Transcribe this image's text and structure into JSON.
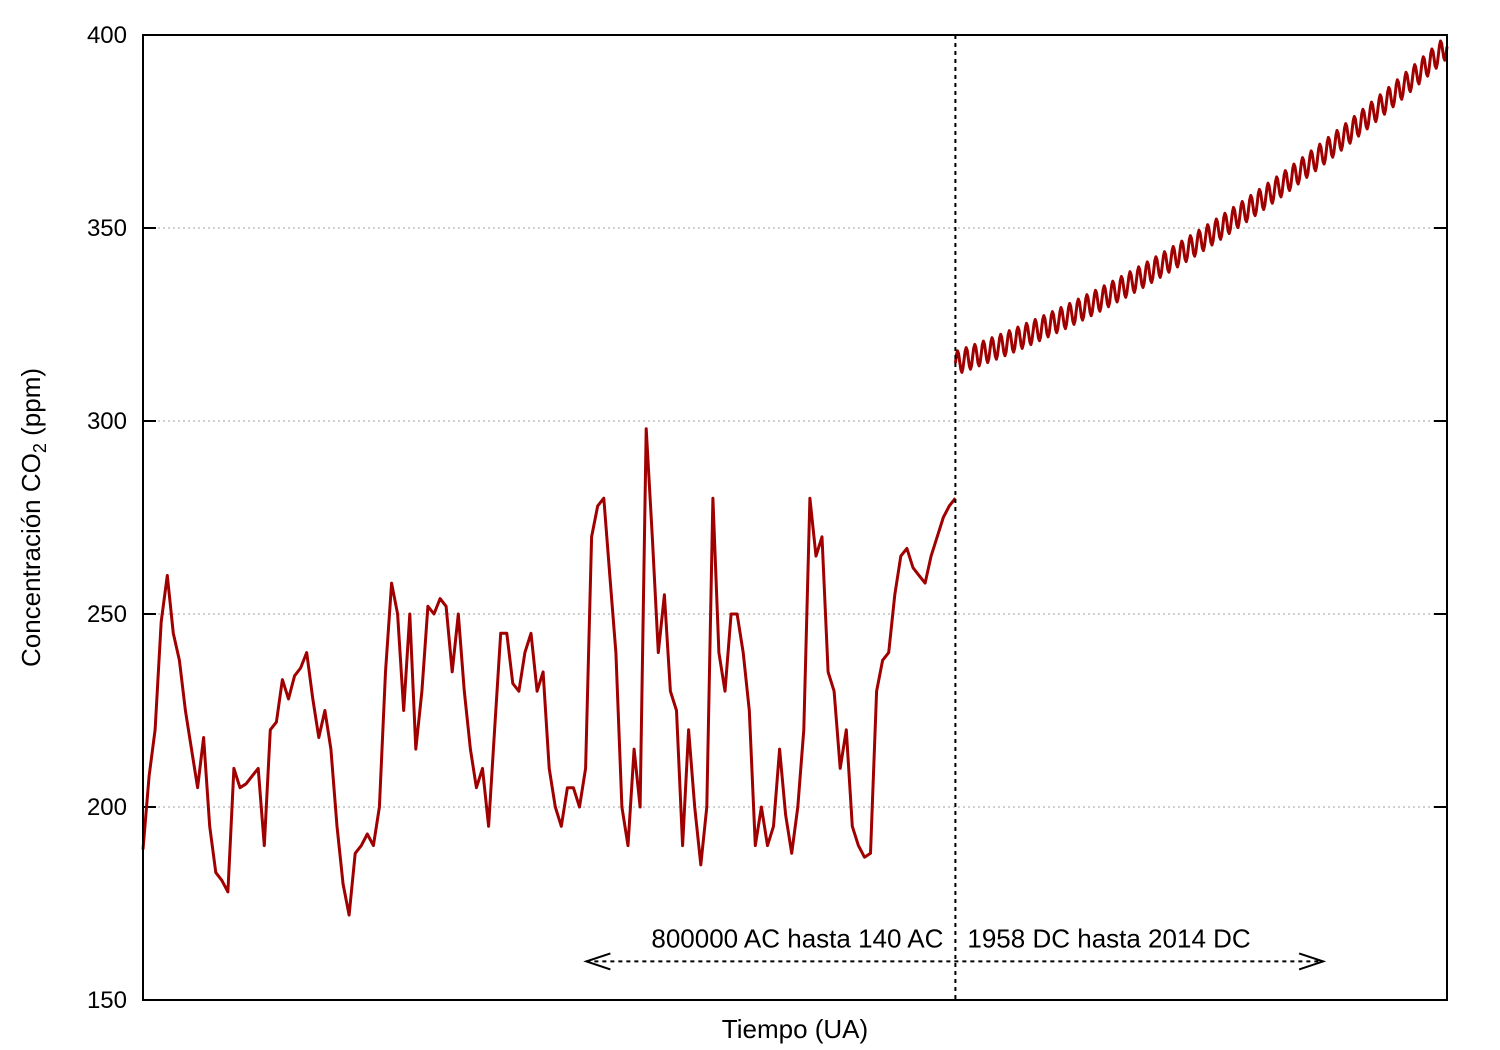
{
  "chart_data": {
    "type": "line",
    "xlabel": "Tiempo (UA)",
    "ylabel_main": "Concentración CO",
    "ylabel_sub": "2",
    "ylabel_suffix": " (ppm)",
    "ylim": [
      150,
      400
    ],
    "xlim": [
      0,
      1
    ],
    "yticks": [
      150,
      200,
      250,
      300,
      350,
      400
    ],
    "grid": true,
    "separator_x": 0.623,
    "annotations": {
      "left_label": "800000 AC hasta 140 AC",
      "right_label": "1958 DC hasta 2014 DC",
      "arrow_x_range": [
        0.34,
        0.905
      ],
      "arrow_y": 160
    },
    "series": [
      {
        "color": "#a00000",
        "segments": [
          {
            "period": "800000 AC hasta 140 AC",
            "x_start": 0.0,
            "x_end": 0.623,
            "values": [
              189,
              208,
              220,
              248,
              260,
              245,
              238,
              225,
              215,
              205,
              218,
              195,
              183,
              181,
              178,
              210,
              205,
              206,
              208,
              210,
              190,
              220,
              222,
              233,
              228,
              234,
              236,
              240,
              228,
              218,
              225,
              215,
              195,
              180,
              172,
              188,
              190,
              193,
              190,
              200,
              235,
              258,
              250,
              225,
              250,
              215,
              230,
              252,
              250,
              254,
              252,
              235,
              250,
              230,
              215,
              205,
              210,
              195,
              220,
              245,
              245,
              232,
              230,
              240,
              245,
              230,
              235,
              210,
              200,
              195,
              205,
              205,
              200,
              210,
              270,
              278,
              280,
              260,
              240,
              200,
              190,
              215,
              200,
              298,
              270,
              240,
              255,
              230,
              225,
              190,
              220,
              200,
              185,
              200,
              280,
              240,
              230,
              250,
              250,
              240,
              225,
              190,
              200,
              190,
              195,
              215,
              198,
              188,
              200,
              220,
              280,
              265,
              270,
              235,
              230,
              210,
              220,
              195,
              190,
              187,
              188,
              230,
              238,
              240,
              255,
              265,
              267,
              262,
              260,
              258,
              265,
              270,
              275,
              278,
              280
            ]
          },
          {
            "period": "1958 DC hasta 2014 DC",
            "x_start": 0.623,
            "x_end": 1.0,
            "trend_start": 315,
            "trend_end": 397,
            "seasonal_amplitude": 3,
            "cycles": 57
          }
        ]
      }
    ]
  }
}
